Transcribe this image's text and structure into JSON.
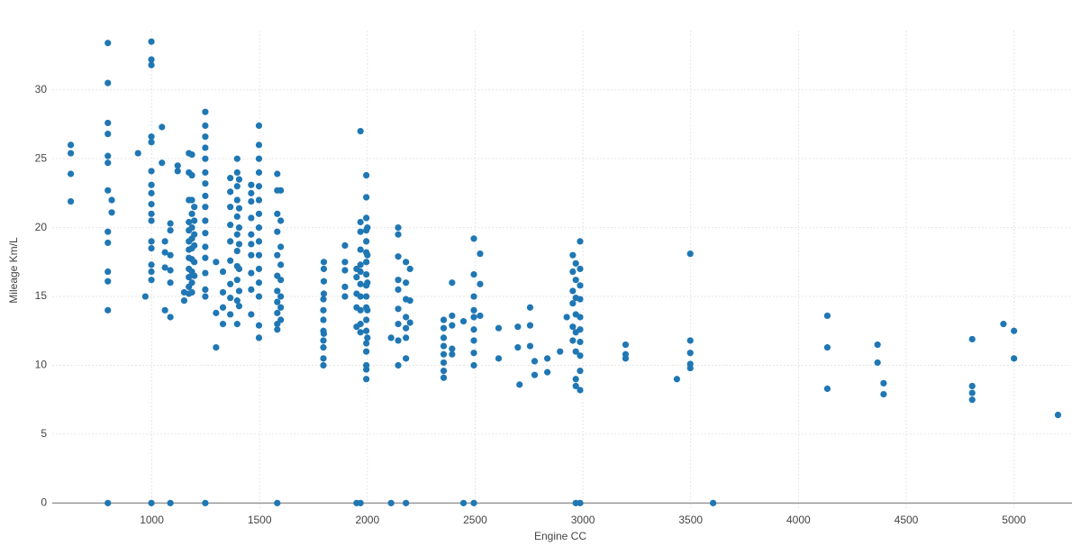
{
  "chart_data": {
    "type": "scatter",
    "x_label": "Engine CC",
    "y_label": "Mileage Km/L",
    "color": "#1f77b4",
    "grid": true,
    "xlim": [
      538,
      5269
    ],
    "ylim": [
      -0.5,
      34.3
    ],
    "xticks": [
      1000,
      1500,
      2000,
      2500,
      3000,
      3500,
      4000,
      4500,
      5000
    ],
    "yticks": [
      0,
      5,
      10,
      15,
      20,
      25,
      30
    ],
    "x": [
      624,
      624,
      624,
      624,
      796,
      796,
      796,
      796,
      796,
      796,
      796,
      796,
      796,
      796,
      796,
      796,
      796,
      814,
      814,
      936,
      970,
      998,
      998,
      998,
      998,
      998,
      998,
      998,
      998,
      998,
      998,
      998,
      998,
      998,
      998,
      998,
      998,
      998,
      1047,
      1047,
      1061,
      1061,
      1061,
      1061,
      1086,
      1086,
      1086,
      1086,
      1086,
      1086,
      1086,
      1120,
      1120,
      1150,
      1150,
      1172,
      1172,
      1172,
      1172,
      1172,
      1172,
      1172,
      1172,
      1172,
      1172,
      1172,
      1172,
      1186,
      1186,
      1186,
      1186,
      1186,
      1186,
      1186,
      1186,
      1186,
      1186,
      1186,
      1197,
      1197,
      1197,
      1197,
      1197,
      1197,
      1248,
      1248,
      1248,
      1248,
      1248,
      1248,
      1248,
      1248,
      1248,
      1248,
      1248,
      1248,
      1248,
      1248,
      1248,
      1248,
      1248,
      1298,
      1298,
      1298,
      1330,
      1330,
      1330,
      1330,
      1364,
      1364,
      1364,
      1364,
      1364,
      1364,
      1364,
      1364,
      1364,
      1396,
      1396,
      1396,
      1396,
      1396,
      1396,
      1396,
      1396,
      1396,
      1396,
      1396,
      1405,
      1405,
      1405,
      1405,
      1405,
      1405,
      1405,
      1461,
      1461,
      1461,
      1461,
      1461,
      1461,
      1461,
      1461,
      1461,
      1461,
      1497,
      1497,
      1497,
      1497,
      1497,
      1497,
      1497,
      1497,
      1497,
      1497,
      1497,
      1497,
      1497,
      1497,
      1497,
      1582,
      1582,
      1582,
      1582,
      1582,
      1582,
      1582,
      1582,
      1582,
      1582,
      1582,
      1582,
      1598,
      1598,
      1598,
      1598,
      1598,
      1598,
      1598,
      1598,
      1796,
      1796,
      1796,
      1796,
      1796,
      1796,
      1796,
      1796,
      1798,
      1798,
      1798,
      1798,
      1798,
      1896,
      1896,
      1896,
      1896,
      1896,
      1950,
      1950,
      1950,
      1950,
      1950,
      1950,
      1968,
      1968,
      1968,
      1968,
      1968,
      1968,
      1968,
      1968,
      1968,
      1968,
      1968,
      1968,
      1995,
      1995,
      1995,
      1995,
      1995,
      1995,
      1995,
      1995,
      1995,
      1995,
      1995,
      1995,
      1995,
      1995,
      1995,
      1995,
      1995,
      1995,
      2000,
      2000,
      2000,
      2000,
      2000,
      2110,
      2110,
      2143,
      2143,
      2143,
      2143,
      2143,
      2143,
      2143,
      2143,
      2143,
      2179,
      2179,
      2179,
      2179,
      2179,
      2179,
      2179,
      2179,
      2198,
      2198,
      2198,
      2354,
      2354,
      2354,
      2354,
      2354,
      2354,
      2354,
      2354,
      2393,
      2393,
      2393,
      2393,
      2393,
      2446,
      2446,
      2494,
      2494,
      2494,
      2494,
      2494,
      2494,
      2494,
      2494,
      2494,
      2494,
      2523,
      2523,
      2523,
      2609,
      2609,
      2698,
      2698,
      2706,
      2755,
      2755,
      2755,
      2776,
      2776,
      2835,
      2835,
      2894,
      2925,
      2953,
      2953,
      2953,
      2953,
      2953,
      2953,
      2967,
      2967,
      2967,
      2967,
      2967,
      2967,
      2967,
      2967,
      2967,
      2987,
      2987,
      2987,
      2987,
      2987,
      2987,
      2987,
      2987,
      2987,
      2987,
      2987,
      3198,
      3198,
      3198,
      3436,
      3498,
      3498,
      3498,
      3498,
      3498,
      3604,
      4134,
      4134,
      4134,
      4367,
      4367,
      4395,
      4395,
      4806,
      4806,
      4806,
      4806,
      4951,
      5000,
      5000,
      5204
    ],
    "y": [
      26,
      25.4,
      23.9,
      21.9,
      33.4,
      30.5,
      27.6,
      26.8,
      25.2,
      24.7,
      22.7,
      19.7,
      18.9,
      16.8,
      16.1,
      14.0,
      0,
      22.0,
      21.1,
      25.4,
      15.0,
      33.5,
      32.2,
      31.8,
      26.6,
      26.2,
      24.1,
      23.1,
      22.5,
      21.7,
      21.0,
      20.5,
      19.0,
      18.5,
      17.3,
      16.8,
      16.2,
      0,
      27.3,
      24.7,
      19.0,
      18.2,
      17.1,
      14.0,
      20.3,
      19.8,
      18.0,
      16.9,
      16.0,
      13.5,
      0,
      24.5,
      24.1,
      15.3,
      14.7,
      25.4,
      24.0,
      22.0,
      20.4,
      19.8,
      19.0,
      18.4,
      17.8,
      17.0,
      16.4,
      15.7,
      15.2,
      25.3,
      23.8,
      22.0,
      21.0,
      20.0,
      19.2,
      18.5,
      17.7,
      16.8,
      16.0,
      15.3,
      21.5,
      20.5,
      19.5,
      18.7,
      17.5,
      16.5,
      28.4,
      27.4,
      26.6,
      25.8,
      25.0,
      24.0,
      23.2,
      22.3,
      21.5,
      20.5,
      19.6,
      18.6,
      17.8,
      16.7,
      15.5,
      15.0,
      0,
      17.5,
      13.8,
      11.3,
      15.3,
      14.2,
      13.0,
      16.8,
      23.6,
      22.6,
      21.5,
      20.2,
      19.0,
      17.6,
      15.9,
      14.9,
      13.7,
      25.0,
      24.0,
      23.0,
      22.0,
      20.8,
      19.5,
      18.3,
      17.2,
      16.2,
      14.7,
      13.0,
      23.5,
      21.4,
      20.0,
      18.8,
      17.0,
      15.4,
      14.3,
      23.1,
      22.5,
      21.9,
      20.7,
      19.5,
      18.8,
      18.0,
      16.7,
      15.5,
      13.7,
      27.4,
      26.0,
      25.0,
      24.0,
      23.0,
      22.0,
      21.0,
      20.0,
      19.0,
      18.0,
      17.0,
      16.0,
      15.0,
      12.9,
      12.0,
      23.9,
      22.7,
      21.0,
      19.7,
      18.0,
      16.5,
      15.4,
      14.6,
      13.8,
      13.0,
      12.6,
      0,
      22.7,
      20.5,
      18.6,
      17.3,
      16.2,
      15.0,
      14.2,
      13.3,
      14.8,
      14.0,
      13.3,
      12.5,
      11.8,
      11.3,
      10.5,
      10.0,
      17.5,
      17.0,
      16.1,
      15.2,
      12.3,
      18.7,
      17.5,
      16.9,
      15.7,
      15.0,
      17.0,
      16.4,
      15.2,
      14.2,
      12.8,
      0,
      27.0,
      20.4,
      19.7,
      18.4,
      17.3,
      16.8,
      15.9,
      15.0,
      14.0,
      13.0,
      12.4,
      0,
      23.8,
      22.2,
      20.7,
      19.8,
      19.0,
      18.2,
      17.5,
      16.6,
      15.8,
      15.0,
      14.2,
      13.3,
      12.5,
      11.6,
      11.0,
      10.0,
      9.7,
      9.0,
      20.0,
      18.0,
      16.0,
      14.0,
      12.0,
      12.0,
      0,
      20.0,
      19.5,
      17.9,
      16.2,
      15.5,
      14.1,
      13.0,
      11.8,
      10.0,
      17.5,
      16.0,
      14.8,
      13.5,
      12.7,
      12.0,
      10.5,
      0,
      17.0,
      14.7,
      13.1,
      13.3,
      12.7,
      12.0,
      11.4,
      10.8,
      10.2,
      9.6,
      9.1,
      16.0,
      13.6,
      12.9,
      11.2,
      10.8,
      13.2,
      0,
      19.2,
      16.6,
      15.0,
      14.0,
      13.5,
      12.6,
      11.8,
      10.9,
      10.0,
      0,
      18.1,
      15.9,
      13.6,
      12.7,
      10.5,
      12.8,
      11.3,
      8.6,
      14.2,
      12.9,
      11.4,
      10.3,
      9.3,
      10.5,
      9.5,
      11.0,
      13.5,
      18.0,
      16.8,
      15.4,
      14.5,
      12.8,
      11.8,
      17.4,
      16.2,
      14.9,
      13.7,
      12.4,
      11.0,
      9.0,
      8.5,
      0,
      19.0,
      17.0,
      15.8,
      14.8,
      13.5,
      12.6,
      11.7,
      10.7,
      9.6,
      8.2,
      0,
      11.5,
      10.8,
      10.5,
      9.0,
      18.1,
      11.8,
      10.9,
      10.1,
      9.8,
      0,
      13.6,
      11.3,
      8.3,
      11.5,
      10.2,
      8.7,
      7.9,
      11.9,
      8.5,
      8.0,
      7.5,
      13.0,
      12.5,
      10.5,
      6.4
    ]
  }
}
